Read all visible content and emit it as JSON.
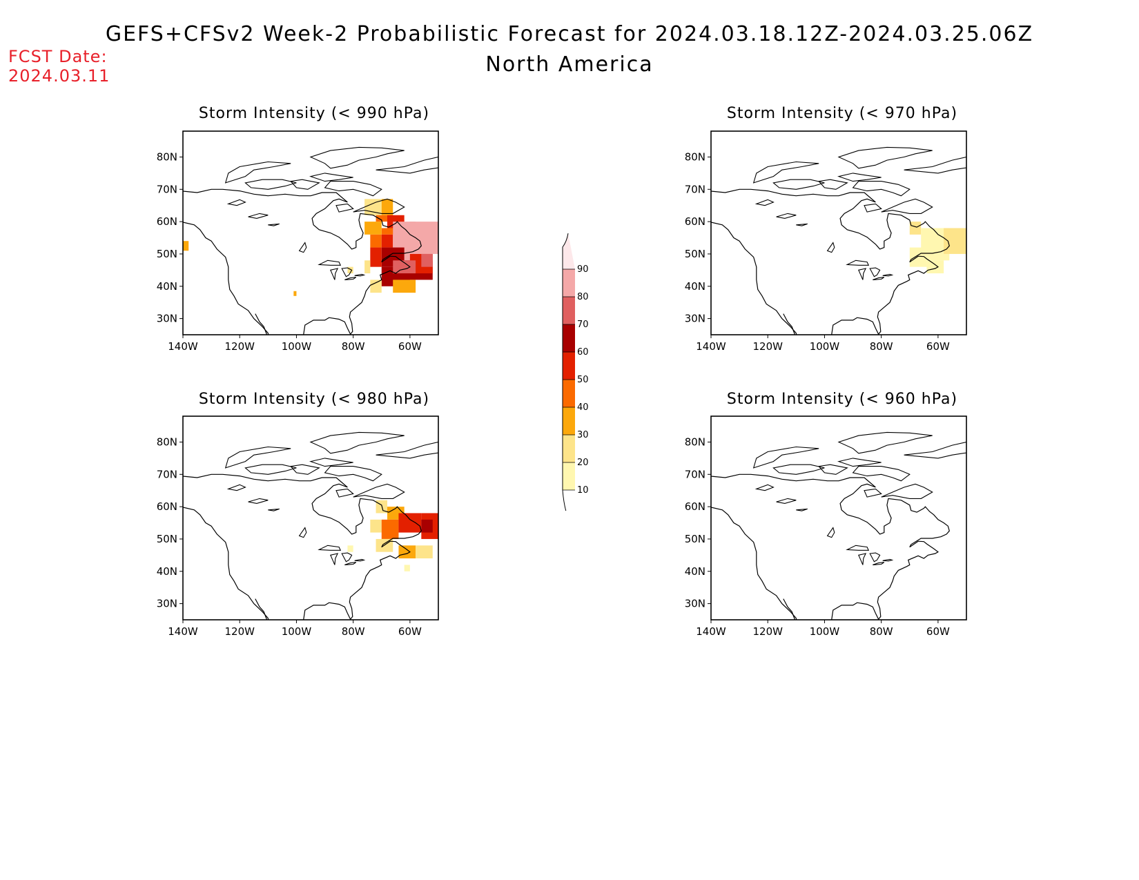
{
  "header": {
    "title": "GEFS+CFSv2 Week-2 Probabilistic Forecast for 2024.03.18.12Z-2024.03.25.06Z",
    "subtitle": "North America",
    "fcst_label": "FCST Date:",
    "fcst_date": "2024.03.11"
  },
  "axes": {
    "lat_labels": [
      "80N",
      "70N",
      "60N",
      "50N",
      "40N",
      "30N"
    ],
    "lon_labels": [
      "140W",
      "120W",
      "100W",
      "80W",
      "60W"
    ]
  },
  "panels": [
    {
      "title": "Storm Intensity (< 990 hPa)"
    },
    {
      "title": "Storm Intensity (< 970 hPa)"
    },
    {
      "title": "Storm Intensity (< 980 hPa)"
    },
    {
      "title": "Storm Intensity (< 960 hPa)"
    }
  ],
  "colorbar": {
    "levels": [
      "10",
      "20",
      "30",
      "40",
      "50",
      "60",
      "70",
      "80",
      "90"
    ],
    "colors": [
      "#fff7b0",
      "#fde48a",
      "#fca80c",
      "#fb6a00",
      "#e32000",
      "#a80000",
      "#e06060",
      "#f4a8a8",
      "#fde8ea"
    ]
  },
  "colors": {
    "fcst_text": "#e8202a",
    "coastline": "#000000"
  }
}
